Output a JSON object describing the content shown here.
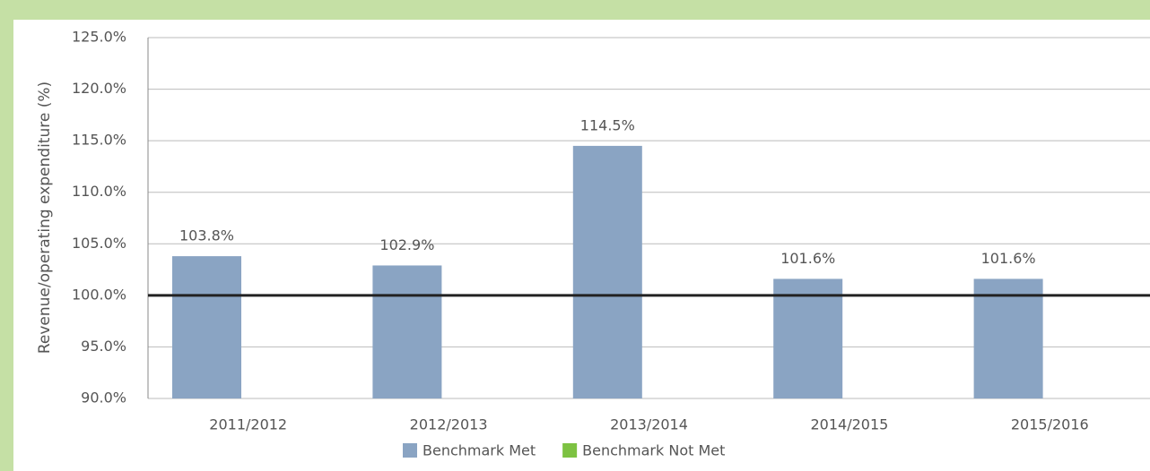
{
  "chart_data": {
    "type": "bar",
    "y_label": "Revenue/operating expenditure (%)",
    "categories": [
      "2011/2012",
      "2012/2013",
      "2013/2014",
      "2014/2015",
      "2015/2016"
    ],
    "series": [
      {
        "name": "Benchmark Met",
        "color": "#8aa4c3",
        "values": [
          103.8,
          102.9,
          114.5,
          101.6,
          101.6
        ],
        "value_labels": [
          "103.8%",
          "102.9%",
          "114.5%",
          "101.6%",
          "101.6%"
        ]
      },
      {
        "name": "Benchmark Not Met",
        "color": "#7dc242",
        "values": [
          null,
          null,
          null,
          null,
          null
        ]
      }
    ],
    "benchmark": 100,
    "ylim": [
      90,
      125
    ],
    "yticks": [
      {
        "value": 90,
        "label": "90.0%"
      },
      {
        "value": 95,
        "label": "95.0%"
      },
      {
        "value": 100,
        "label": "100.0%"
      },
      {
        "value": 105,
        "label": "105.0%"
      },
      {
        "value": 110,
        "label": "110.0%"
      },
      {
        "value": 115,
        "label": "115.0%"
      },
      {
        "value": 120,
        "label": "120.0%"
      },
      {
        "value": 125,
        "label": "125.0%"
      }
    ],
    "grid": true,
    "legend": "bottom"
  }
}
